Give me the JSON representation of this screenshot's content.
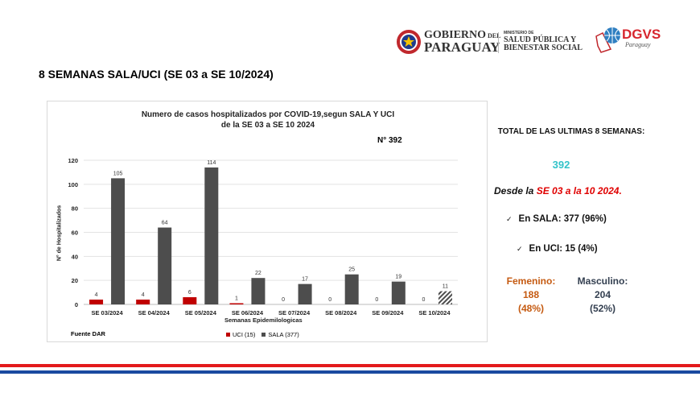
{
  "header": {
    "gov_logo_line1": "GOBIERNO",
    "gov_logo_del": "DEL",
    "gov_logo_line2": "PARAGUAY",
    "ministry_small": "MINISTERIO DE",
    "ministry_line1": "SALUD PÚBLICA Y",
    "ministry_line2": "BIENESTAR SOCIAL",
    "dgvs": "DGVS",
    "dgvs_sub": "Paraguay"
  },
  "page_title": "8 SEMANAS SALA/UCI  (SE 03 a SE 10/2024)",
  "chart_data": {
    "type": "bar",
    "title_line1": "Numero de casos hospitalizados por COVID-19,segun SALA Y UCI",
    "title_line2": "de la SE 03 a SE 10 2024",
    "annotation": "N° 392",
    "xlabel": "Semanas Epidemilologicas",
    "ylabel": "N° de Hospitalizados",
    "ylim": [
      0,
      120
    ],
    "yticks": [
      "0",
      "20",
      "40",
      "60",
      "80",
      "100",
      "120"
    ],
    "categories": [
      "SE 03/2024",
      "SE 04/2024",
      "SE 05/2024",
      "SE 06/2024",
      "SE 07/2024",
      "SE 08/2024",
      "SE 09/2024",
      "SE 10/2024"
    ],
    "series": [
      {
        "name": "UCI (15)",
        "color": "#c00000",
        "values": [
          4,
          4,
          6,
          1,
          0,
          0,
          0,
          0
        ]
      },
      {
        "name": "SALA (377)",
        "color": "#4d4d4d",
        "values": [
          105,
          64,
          114,
          22,
          17,
          25,
          19,
          11
        ]
      }
    ],
    "source": "Fuente DAR",
    "legend_position": "bottom"
  },
  "summary": {
    "total_label": "TOTAL DE LAS ULTIMAS 8 SEMANAS:",
    "total_value": "392",
    "desde_prefix": "Desde la ",
    "desde_range": "SE 03 a la 10 2024.",
    "sala": "En SALA: 377 (96%)",
    "uci": "En UCI: 15 (4%)",
    "check": "✓",
    "fem_label": "Femenino:",
    "fem_value": "188",
    "fem_pct": "(48%)",
    "masc_label": "Masculino:",
    "masc_value": "204",
    "masc_pct": "(52%)"
  },
  "colors": {
    "teal": "#33c3c9",
    "red": "#e00000",
    "orange": "#c55a11",
    "navy": "#333f50",
    "flag_red": "#e3191b",
    "flag_blue": "#1a4aa0"
  }
}
